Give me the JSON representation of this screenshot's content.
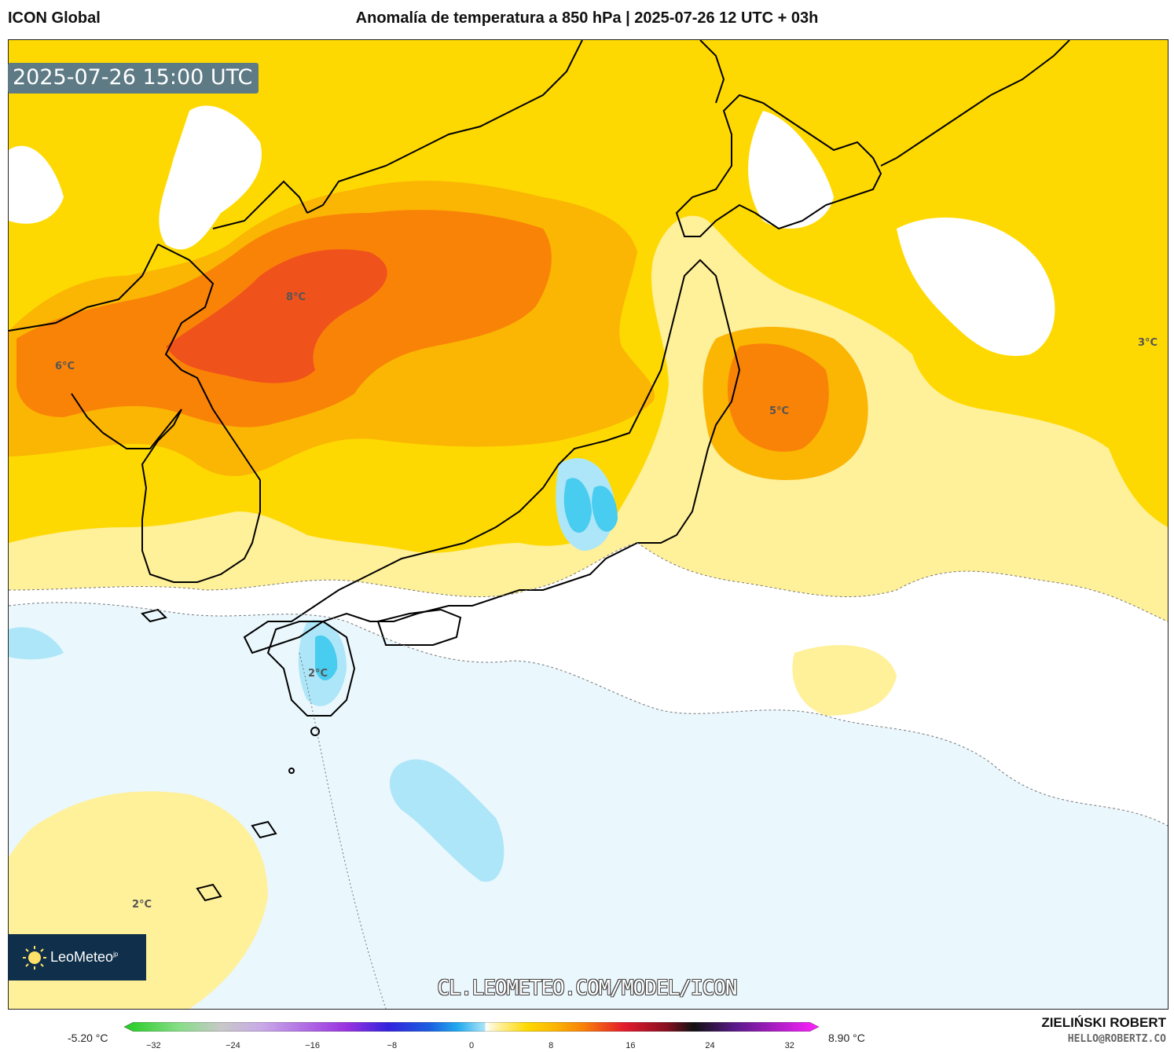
{
  "header": {
    "model": "ICON Global",
    "title": "Anomalía de temperatura a 850 hPa | 2025-07-26 12 UTC + 03h"
  },
  "map": {
    "valid_time": "2025-07-26 15:00 UTC",
    "labels": [
      "8°C",
      "6°C",
      "5°C",
      "3°C",
      "2°C",
      "2°C"
    ],
    "colors": {
      "very_warm": "#f0521c",
      "warm": "#f98307",
      "orange": "#fbb503",
      "yellow": "#fed901",
      "light_yellow": "#fff09a",
      "pale_yellow": "#fff8cc",
      "white": "#ffffff",
      "pale_blue": "#eaf7fd",
      "light_blue": "#ade6f8",
      "cyan": "#48ccef",
      "coast": "#000000"
    }
  },
  "branding": {
    "logo": "LeoMeteo",
    "logo_suffix": "jp",
    "url": "CL.LEOMETEO.COM/MODEL/ICON",
    "author": "ZIELIŃSKI ROBERT",
    "email": "HELLO@ROBERTZ.CO"
  },
  "colorbar": {
    "min_label": "-5.20 °C",
    "max_label": "8.90 °C",
    "ticks": [
      "−32",
      "−24",
      "−16",
      "−8",
      "0",
      "8",
      "16",
      "24",
      "32"
    ],
    "tick_values": [
      -32,
      -24,
      -16,
      -8,
      0,
      8,
      16,
      24,
      32
    ],
    "range": [
      -34,
      34
    ]
  }
}
